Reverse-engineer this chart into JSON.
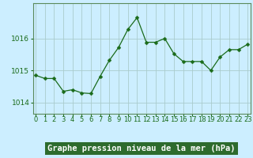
{
  "x": [
    0,
    1,
    2,
    3,
    4,
    5,
    6,
    7,
    8,
    9,
    10,
    11,
    12,
    13,
    14,
    15,
    16,
    17,
    18,
    19,
    20,
    21,
    22,
    23
  ],
  "y": [
    1014.85,
    1014.75,
    1014.75,
    1014.35,
    1014.4,
    1014.3,
    1014.28,
    1014.82,
    1015.32,
    1015.72,
    1016.28,
    1016.65,
    1015.88,
    1015.88,
    1016.0,
    1015.52,
    1015.28,
    1015.28,
    1015.28,
    1015.0,
    1015.42,
    1015.65,
    1015.65,
    1015.82
  ],
  "line_color": "#1a6b1a",
  "marker": "D",
  "marker_size": 2.5,
  "bg_color": "#cceeff",
  "plot_bg": "#cceeff",
  "grid_color": "#aacccc",
  "spine_color": "#5a8a5a",
  "xlabel": "Graphe pression niveau de la mer (hPa)",
  "xlabel_fontsize": 7.5,
  "xlabel_color": "#1a5c1a",
  "xlabel_bg": "#2d7a2d",
  "ytick_labels": [
    "1014",
    "1015",
    "1016"
  ],
  "yticks": [
    1014,
    1015,
    1016
  ],
  "ylim": [
    1013.65,
    1017.1
  ],
  "xlim": [
    -0.3,
    23.3
  ],
  "xtick_labels": [
    "0",
    "1",
    "2",
    "3",
    "4",
    "5",
    "6",
    "7",
    "8",
    "9",
    "10",
    "11",
    "12",
    "13",
    "14",
    "15",
    "16",
    "17",
    "18",
    "19",
    "20",
    "21",
    "22",
    "23"
  ],
  "tick_fontsize": 6.0,
  "tick_color": "#1a6b1a",
  "ytick_fontsize": 6.5
}
